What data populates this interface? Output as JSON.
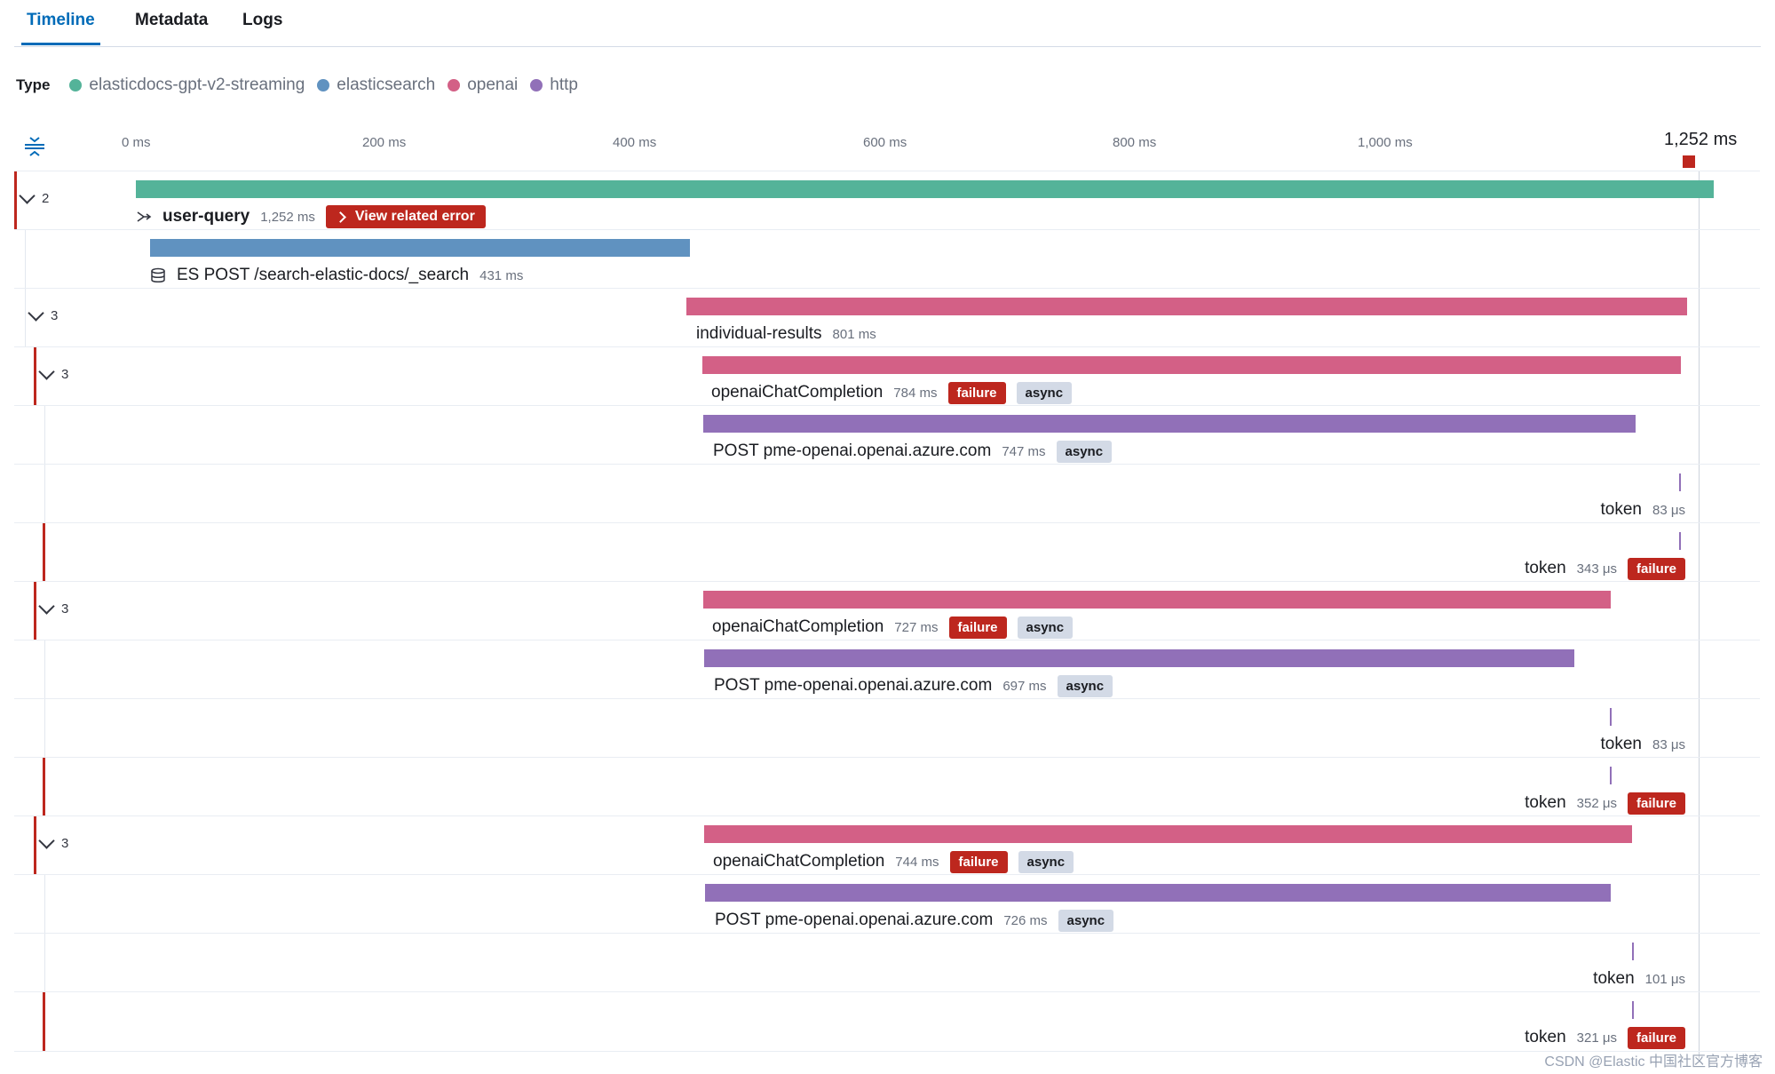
{
  "tabs": [
    {
      "label": "Timeline",
      "active": true
    },
    {
      "label": "Metadata",
      "active": false
    },
    {
      "label": "Logs",
      "active": false
    }
  ],
  "legend": {
    "label": "Type",
    "items": [
      {
        "name": "elasticdocs-gpt-v2-streaming",
        "color": "#54b399"
      },
      {
        "name": "elasticsearch",
        "color": "#6092c0"
      },
      {
        "name": "openai",
        "color": "#d36086"
      },
      {
        "name": "http",
        "color": "#9170b8"
      }
    ]
  },
  "timeline": {
    "ticks": [
      "0 ms",
      "200 ms",
      "400 ms",
      "600 ms",
      "800 ms",
      "1,000 ms"
    ],
    "end_label": "1,252 ms"
  },
  "rows": [
    {
      "toggle": "2",
      "name": "user-query",
      "duration": "1,252 ms",
      "error_button": "View related error",
      "icon": "merge-icon",
      "color": "#54b399"
    },
    {
      "name": "ES POST /search-elastic-docs/_search",
      "duration": "431 ms",
      "icon": "database-icon",
      "color": "#6092c0"
    },
    {
      "toggle": "3",
      "name": "individual-results",
      "duration": "801 ms",
      "color": "#d36086"
    },
    {
      "toggle": "3",
      "name": "openaiChatCompletion",
      "duration": "784 ms",
      "badges": [
        "failure",
        "async"
      ],
      "color": "#d36086"
    },
    {
      "name": "POST pme-openai.openai.azure.com",
      "duration": "747 ms",
      "badges": [
        "async"
      ],
      "color": "#9170b8"
    },
    {
      "name": "token",
      "duration": "83 μs",
      "color": "#9170b8"
    },
    {
      "name": "token",
      "duration": "343 μs",
      "badges": [
        "failure"
      ],
      "color": "#9170b8"
    },
    {
      "toggle": "3",
      "name": "openaiChatCompletion",
      "duration": "727 ms",
      "badges": [
        "failure",
        "async"
      ],
      "color": "#d36086"
    },
    {
      "name": "POST pme-openai.openai.azure.com",
      "duration": "697 ms",
      "badges": [
        "async"
      ],
      "color": "#9170b8"
    },
    {
      "name": "token",
      "duration": "83 μs",
      "color": "#9170b8"
    },
    {
      "name": "token",
      "duration": "352 μs",
      "badges": [
        "failure"
      ],
      "color": "#9170b8"
    },
    {
      "toggle": "3",
      "name": "openaiChatCompletion",
      "duration": "744 ms",
      "badges": [
        "failure",
        "async"
      ],
      "color": "#d36086"
    },
    {
      "name": "POST pme-openai.openai.azure.com",
      "duration": "726 ms",
      "badges": [
        "async"
      ],
      "color": "#9170b8"
    },
    {
      "name": "token",
      "duration": "101 μs",
      "color": "#9170b8"
    },
    {
      "name": "token",
      "duration": "321 μs",
      "badges": [
        "failure"
      ],
      "color": "#9170b8"
    }
  ],
  "watermark": "CSDN @Elastic 中国社区官方博客"
}
